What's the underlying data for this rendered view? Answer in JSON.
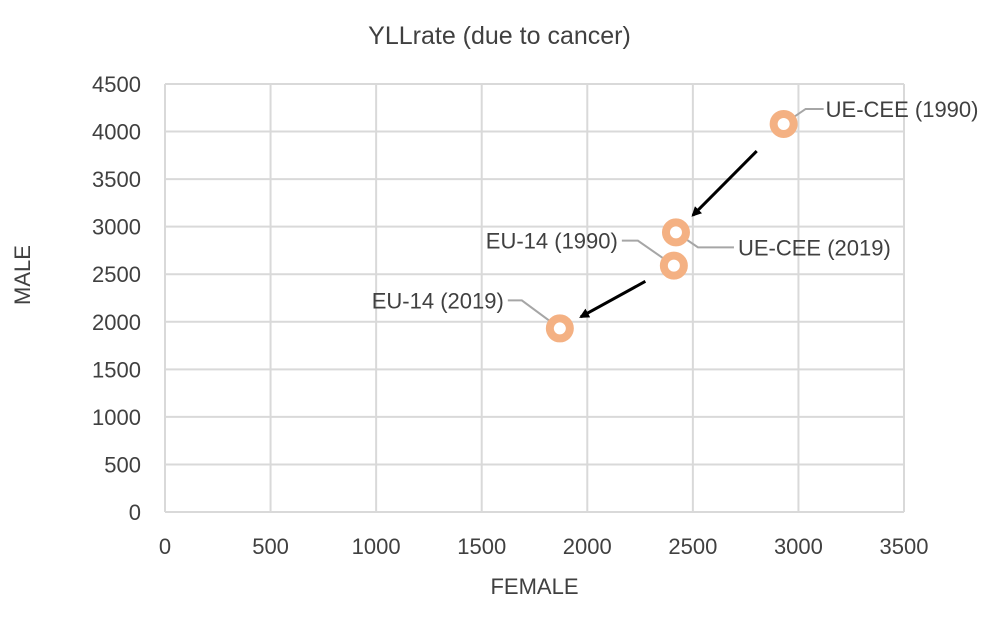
{
  "chart_data": {
    "type": "scatter",
    "title": "YLLrate (due to cancer)",
    "xlabel": "FEMALE",
    "ylabel": "MALE",
    "xlim": [
      0,
      3500
    ],
    "ylim": [
      0,
      4500
    ],
    "x_ticks": [
      0,
      500,
      1000,
      1500,
      2000,
      2500,
      3000,
      3500
    ],
    "y_ticks": [
      0,
      500,
      1000,
      1500,
      2000,
      2500,
      3000,
      3500,
      4000,
      4500
    ],
    "grid": true,
    "legend": "none",
    "marker_color": "#F4B183",
    "series": [
      {
        "points": [
          {
            "label": "UE-CEE (1990)",
            "x": 2930,
            "y": 4080
          },
          {
            "label": "UE-CEE (2019)",
            "x": 2420,
            "y": 2940
          },
          {
            "label": "EU-14 (1990)",
            "x": 2410,
            "y": 2590
          },
          {
            "label": "EU-14 (2019)",
            "x": 1870,
            "y": 1930
          }
        ]
      }
    ],
    "arrows": [
      {
        "from": "UE-CEE (1990)",
        "to": "UE-CEE (2019)"
      },
      {
        "from": "EU-14 (1990)",
        "to": "EU-14 (2019)"
      }
    ]
  }
}
